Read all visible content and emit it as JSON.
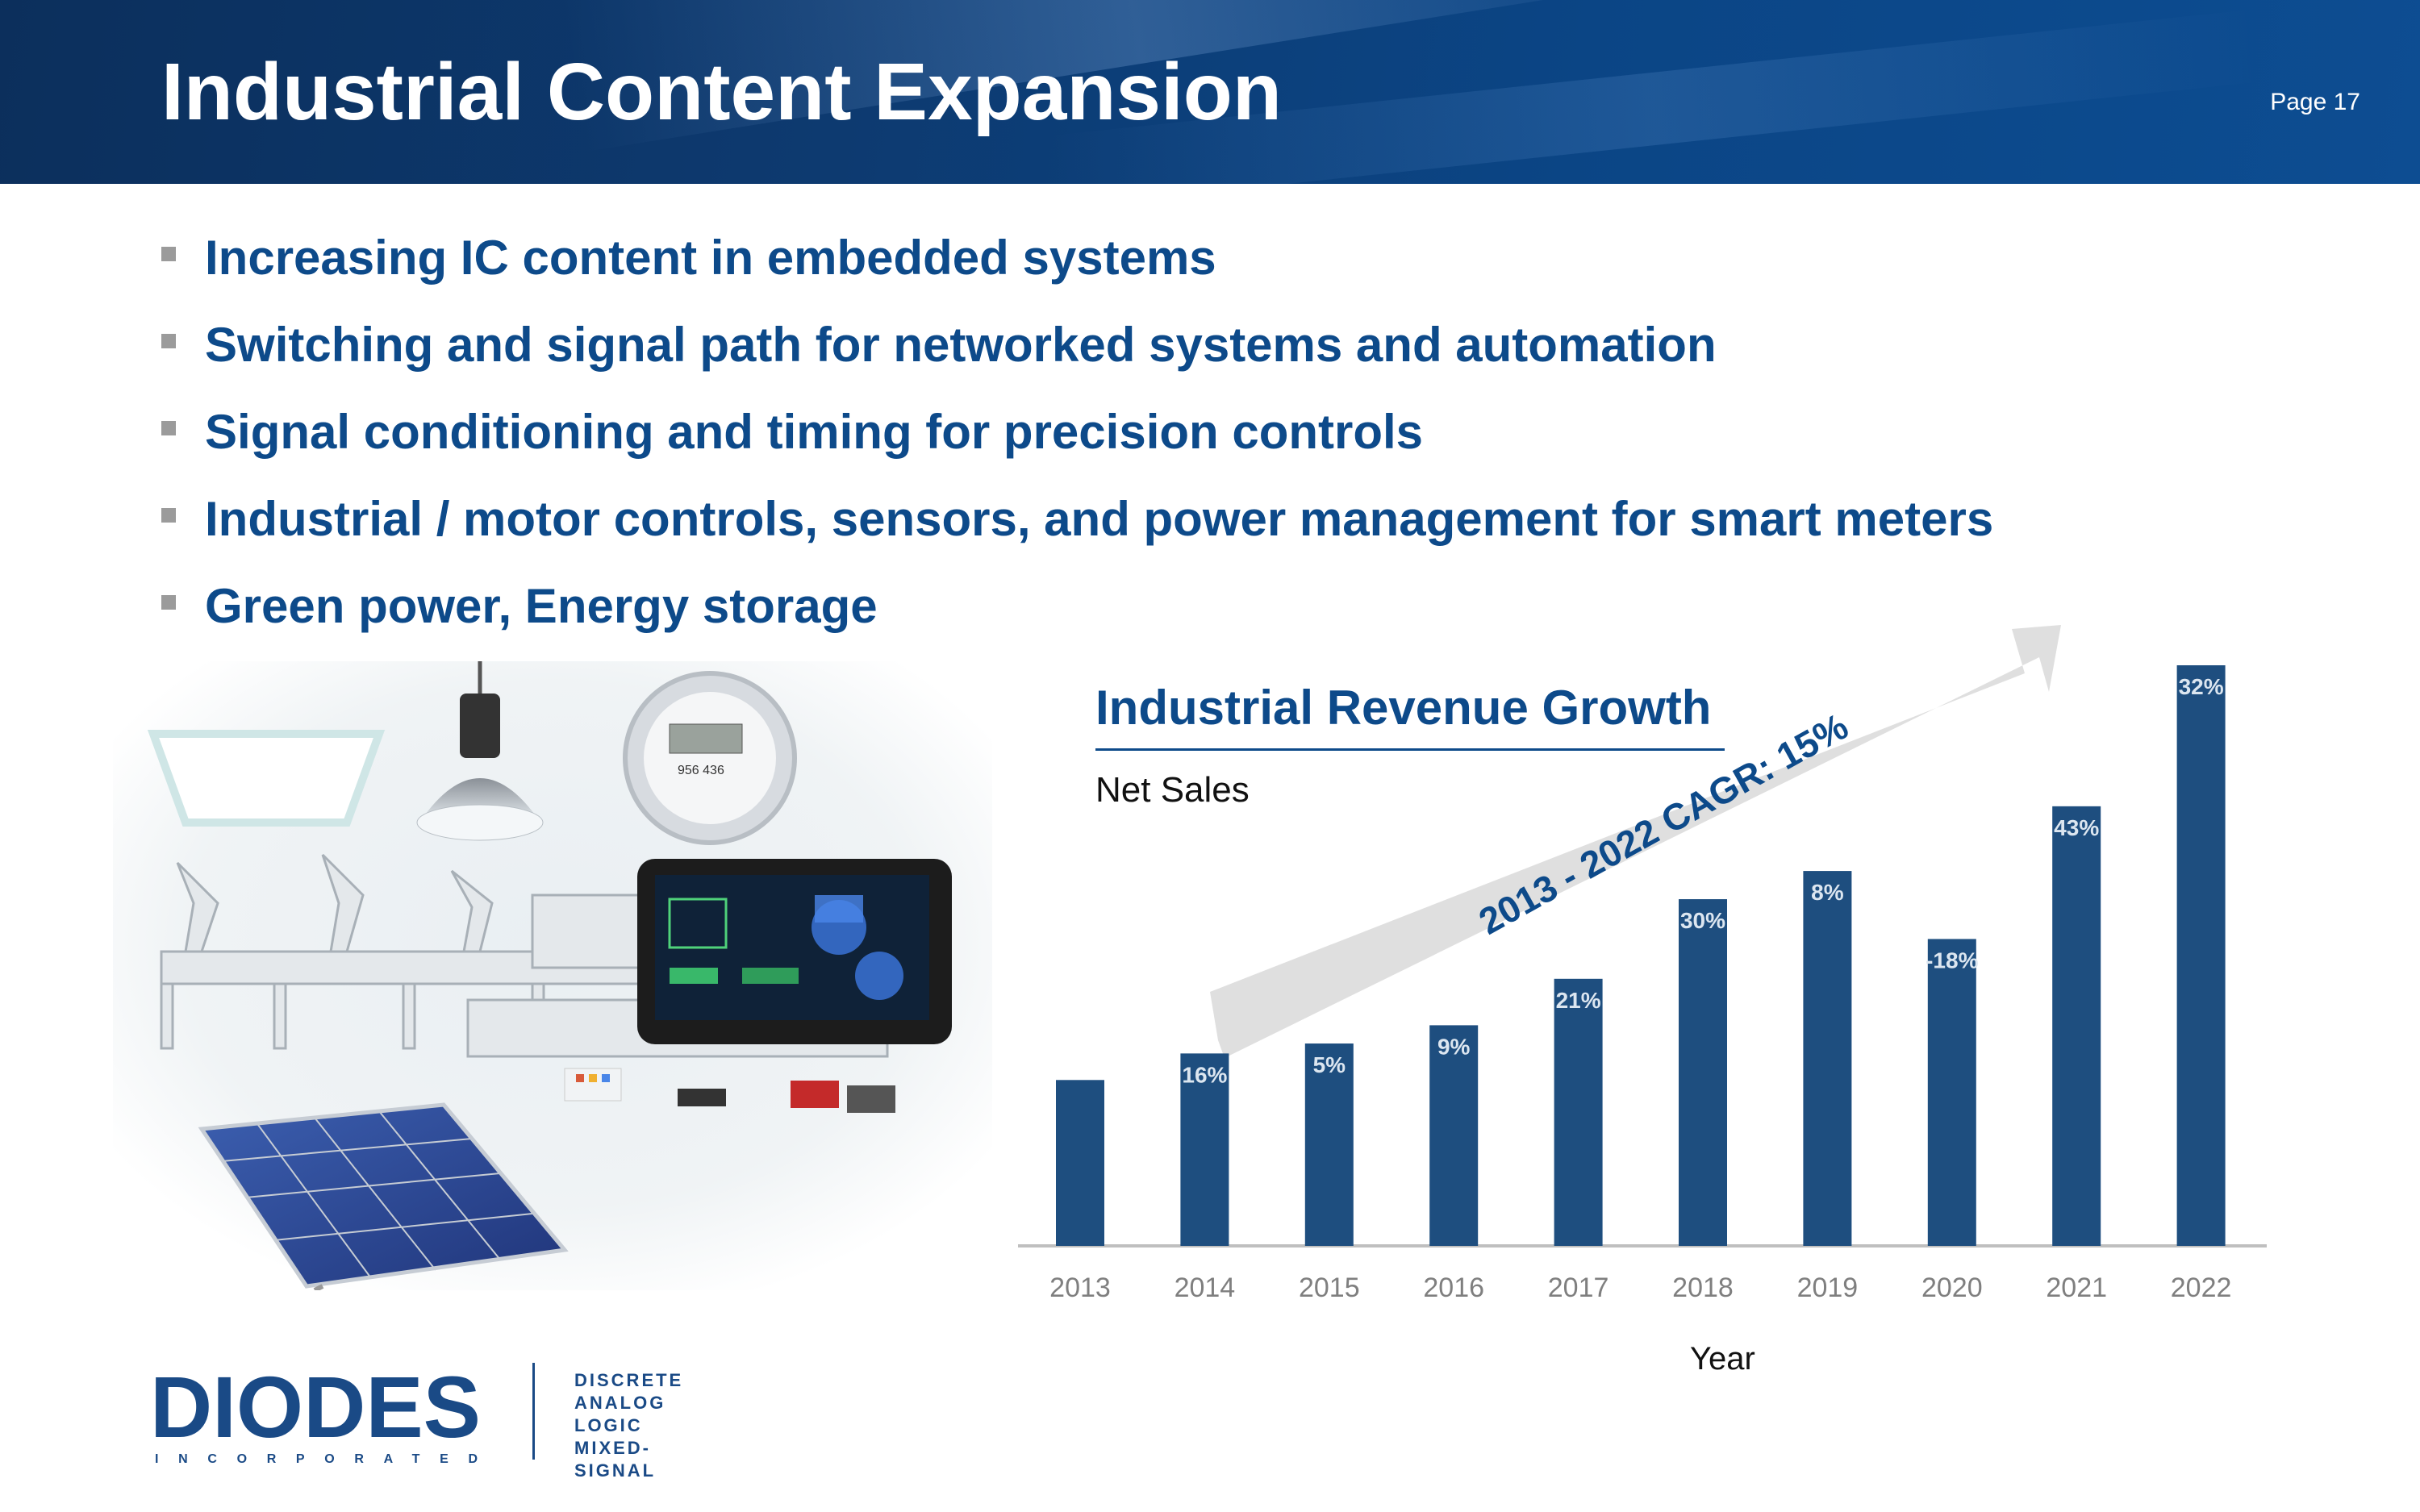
{
  "header": {
    "title": "Industrial Content Expansion",
    "page": "Page 17"
  },
  "bullets": [
    "Increasing IC content in embedded systems",
    "Switching and signal path for networked systems and automation",
    "Signal conditioning and timing for precision controls",
    "Industrial / motor controls, sensors, and power management for smart meters",
    "Green power, Energy storage"
  ],
  "logo": {
    "name": "DIODES",
    "subtitle": "INCORPORATED",
    "tags": [
      "DISCRETE",
      "ANALOG",
      "LOGIC",
      "MIXED-SIGNAL"
    ]
  },
  "chart_data": {
    "type": "bar",
    "title": "Industrial Revenue Growth",
    "subtitle": "Net Sales",
    "xlabel": "Year",
    "ylabel": "",
    "annotation": "2013 - 2022 CAGR: 15%",
    "categories": [
      "2013",
      "2014",
      "2015",
      "2016",
      "2017",
      "2018",
      "2019",
      "2020",
      "2021",
      "2022"
    ],
    "values": [
      100,
      116,
      122,
      133,
      161,
      209,
      226,
      185,
      265,
      350
    ],
    "data_labels": [
      "",
      "16%",
      "5%",
      "9%",
      "21%",
      "30%",
      "8%",
      "-18%",
      "43%",
      "32%"
    ],
    "colors": {
      "bar": "#1e4e7f",
      "axis": "#bfbfbf",
      "arrow": "#d9d9d9",
      "annotation": "#0d4a8a"
    },
    "grid": false,
    "legend": "none"
  }
}
